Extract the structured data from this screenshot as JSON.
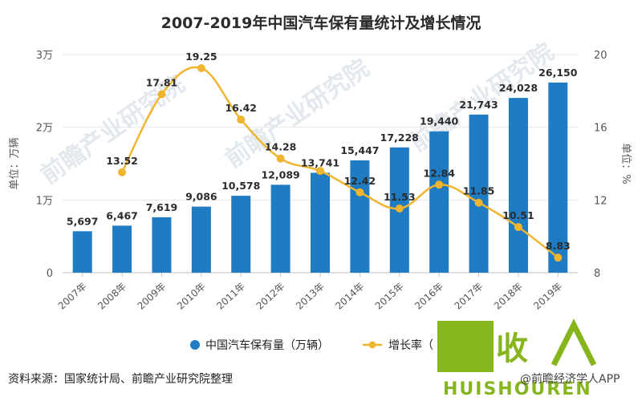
{
  "chart_data": {
    "type": "bar",
    "title": "2007-2019年中国汽车保有量统计及增长情况",
    "categories": [
      "2007年",
      "2008年",
      "2009年",
      "2010年",
      "2011年",
      "2012年",
      "2013年",
      "2014年",
      "2015年",
      "2016年",
      "2017年",
      "2018年",
      "2019年"
    ],
    "series": [
      {
        "name": "中国汽车保有量（万辆）",
        "type": "bar",
        "axis": "left",
        "color": "#1f7bc2",
        "values": [
          5697,
          6467,
          7619,
          9086,
          10578,
          12089,
          13741,
          15447,
          17228,
          19440,
          21743,
          24028,
          26150
        ],
        "labels": [
          "5,697",
          "6,467",
          "7,619",
          "9,086",
          "10,578",
          "12,089",
          "13,741",
          "15,447",
          "17,228",
          "19,440",
          "21,743",
          "24,028",
          "26,150"
        ]
      },
      {
        "name": "增长率（",
        "type": "line",
        "axis": "right",
        "color": "#f0b52f",
        "values": [
          null,
          13.52,
          17.81,
          19.25,
          16.42,
          14.28,
          13.6,
          12.42,
          11.53,
          12.84,
          11.85,
          10.51,
          8.83
        ],
        "labels": [
          "",
          "13.52",
          "17.81",
          "19.25",
          "16.42",
          "14.28",
          "",
          "12.42",
          "11.53",
          "12.84",
          "11.85",
          "10.51",
          "8.83"
        ]
      }
    ],
    "y_left": {
      "label": "单位：万辆",
      "ylim": [
        0,
        30000
      ],
      "ticks": [
        0,
        10000,
        20000,
        30000
      ],
      "tick_labels": [
        "0",
        "1万",
        "2万",
        "3万"
      ]
    },
    "y_right": {
      "label": "单位：%",
      "ylim": [
        8,
        20
      ],
      "ticks": [
        8,
        12,
        16,
        20
      ],
      "tick_labels": [
        "8",
        "12",
        "16",
        "20"
      ]
    },
    "grid": true,
    "legend_position": "bottom"
  },
  "source": "资料来源：国家统计局、前瞻产业研究院整理",
  "credit": "@前瞻经济学人APP",
  "watermark": "前瞻产业研究院",
  "logo": {
    "glyph_a": "回",
    "glyph_b": "收",
    "wordmark": "HUISHOUREN",
    "color": "#86b51e"
  }
}
